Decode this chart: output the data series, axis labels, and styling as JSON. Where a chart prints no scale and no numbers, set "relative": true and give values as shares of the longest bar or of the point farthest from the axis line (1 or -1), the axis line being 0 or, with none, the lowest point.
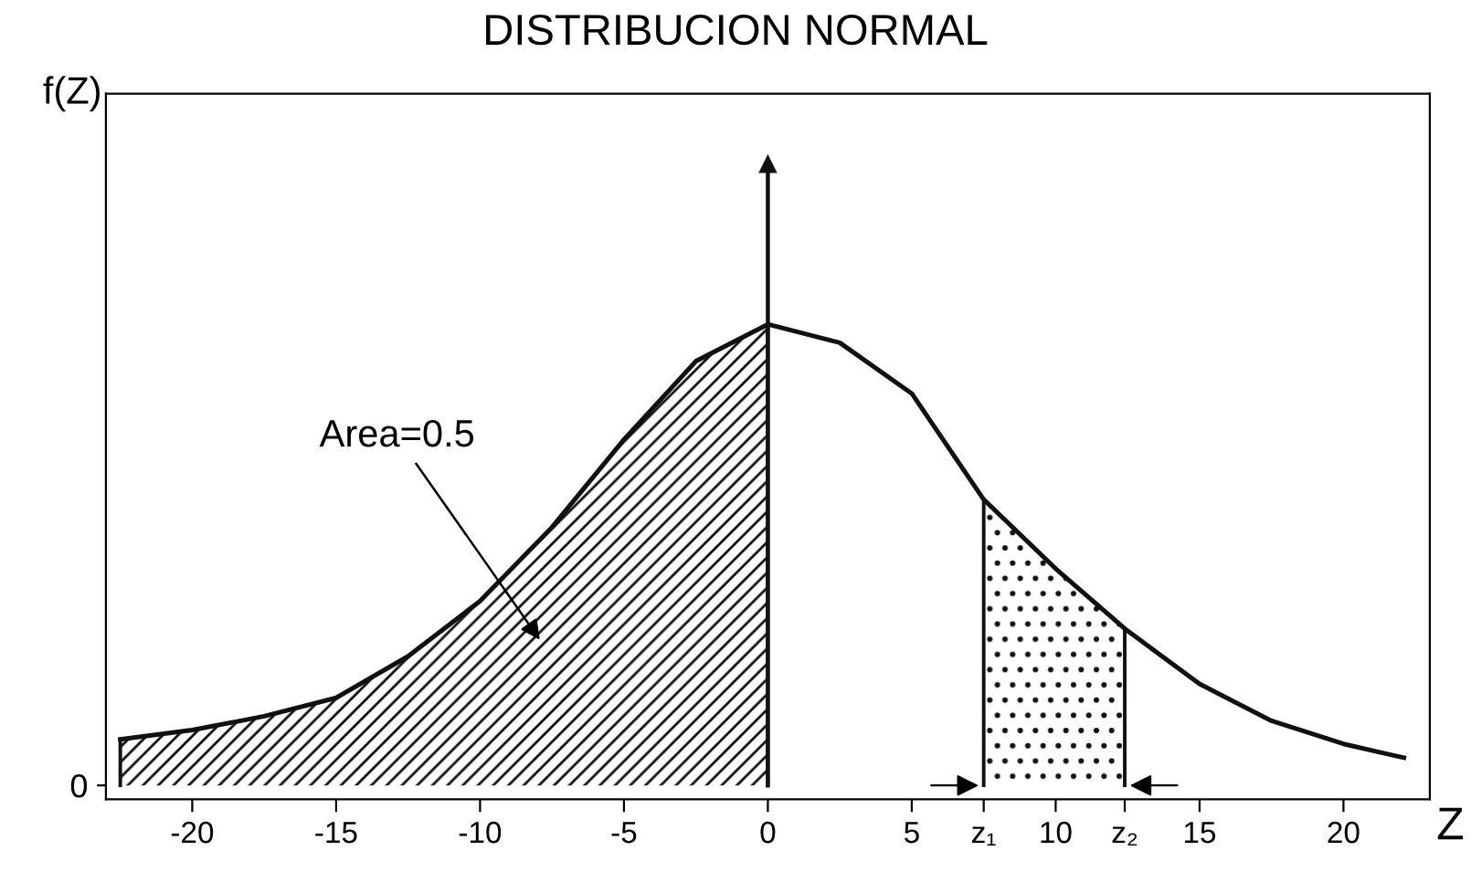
{
  "chart_data": {
    "type": "line",
    "title": "DISTRIBUCION NORMAL",
    "xlabel": "Z",
    "relative": true,
    "x": [
      -22.5,
      -20,
      -17.5,
      -15,
      -12.5,
      -10,
      -7.5,
      -5,
      -2.5,
      0,
      2.5,
      5,
      7.5,
      10,
      12.4,
      15,
      17.5,
      20,
      22.1
    ],
    "series": [
      {
        "color": "#111111",
        "values": [
          0.1,
          0.12,
          0.15,
          0.19,
          0.28,
          0.4,
          0.56,
          0.75,
          0.92,
          1.0,
          0.96,
          0.85,
          0.62,
          0.47,
          0.34,
          0.22,
          0.14,
          0.09,
          0.06
        ]
      },
      {
        "type": "area",
        "color": "#111111",
        "x": [
          -22.5,
          -20,
          -17.5,
          -15,
          -12.5,
          -10,
          -7.5,
          -5,
          -2.5,
          0
        ],
        "values": [
          0.1,
          0.12,
          0.15,
          0.19,
          0.28,
          0.4,
          0.56,
          0.75,
          0.92,
          1.0
        ]
      },
      {
        "type": "area",
        "color": "#111111",
        "x": [
          7.5,
          10,
          12.4
        ],
        "values": [
          0.62,
          0.47,
          0.34
        ]
      }
    ],
    "xlim": [
      -23,
      23
    ],
    "xticks": [
      -20,
      -15,
      -10,
      -5,
      0,
      5,
      {
        "value": 7.5,
        "label": "z₁"
      },
      10,
      {
        "value": 12.4,
        "label": "z₂"
      },
      15,
      20
    ],
    "ref_lines": [
      {
        "axis": "x",
        "value": 0,
        "color": "#111111"
      }
    ],
    "annotations": [
      "Area=0.5",
      "0",
      "f(Z)"
    ],
    "grid": false,
    "legend": false,
    "marker": "none",
    "line_style": "solid"
  }
}
